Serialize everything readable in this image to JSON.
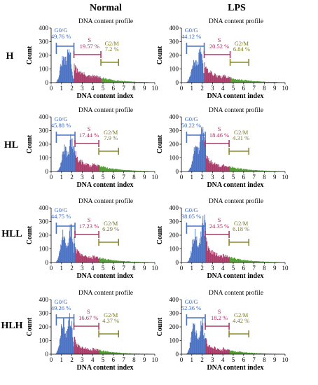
{
  "columns": [
    "Normal",
    "LPS"
  ],
  "rows": [
    "H",
    "HL",
    "HLL",
    "HLH"
  ],
  "colors": {
    "g0g": "#4a72c4",
    "s": "#a93b69",
    "g2m": "#4f9a2e",
    "g0g_label": "#3a65b8",
    "s_label": "#a0305e",
    "g2m_label": "#7a7a1e",
    "g2m_bracket": "#8a8a2a"
  },
  "chart_data": [
    {
      "type": "area",
      "title": "DNA content profile",
      "xlabel": "DNA content index",
      "ylabel": "Count",
      "row": "H",
      "column": "Normal",
      "xlim": [
        0,
        10
      ],
      "ylim": [
        0,
        400
      ],
      "xticks": [
        "0",
        "1",
        "2",
        "3",
        "4",
        "5",
        "6",
        "7",
        "8",
        "9",
        "10"
      ],
      "yticks": [
        "0",
        "100",
        "200",
        "300",
        "400"
      ],
      "phases": [
        {
          "name": "G0/G",
          "percent": "49.76 %",
          "range": [
            0.5,
            2.2
          ]
        },
        {
          "name": "S",
          "percent": "19.57 %",
          "range": [
            2.2,
            4.8
          ]
        },
        {
          "name": "G2/M",
          "percent": "7.2 %",
          "range": [
            4.8,
            6.5
          ]
        }
      ],
      "profile": {
        "peaks": [
          [
            1.15,
            165
          ],
          [
            1.75,
            225
          ]
        ],
        "s_level": 75,
        "g2_level": 18
      }
    },
    {
      "type": "area",
      "title": "DNA content profile",
      "xlabel": "DNA content index",
      "ylabel": "Count",
      "row": "H",
      "column": "LPS",
      "xlim": [
        0,
        10
      ],
      "ylim": [
        0,
        400
      ],
      "xticks": [
        "0",
        "1",
        "2",
        "3",
        "4",
        "5",
        "6",
        "7",
        "8",
        "9",
        "10"
      ],
      "yticks": [
        "0",
        "100",
        "200",
        "300",
        "400"
      ],
      "phases": [
        {
          "name": "G0/G",
          "percent": "44.12 %",
          "range": [
            0.5,
            2.2
          ]
        },
        {
          "name": "S",
          "percent": "20.52 %",
          "range": [
            2.2,
            4.7
          ]
        },
        {
          "name": "G2/M",
          "percent": "6.84 %",
          "range": [
            4.7,
            6.5
          ]
        }
      ],
      "profile": {
        "peaks": [
          [
            1.2,
            155
          ],
          [
            1.85,
            235
          ]
        ],
        "s_level": 70,
        "g2_level": 18
      }
    },
    {
      "type": "area",
      "title": "DNA content profile",
      "xlabel": "DNA content index",
      "ylabel": "Count",
      "row": "HL",
      "column": "Normal",
      "xlim": [
        0,
        10
      ],
      "ylim": [
        0,
        400
      ],
      "xticks": [
        "0",
        "1",
        "2",
        "3",
        "4",
        "5",
        "6",
        "7",
        "8",
        "9",
        "10"
      ],
      "yticks": [
        "0",
        "100",
        "200",
        "300",
        "400"
      ],
      "phases": [
        {
          "name": "G0/G",
          "percent": "45.88 %",
          "range": [
            0.5,
            2.3
          ]
        },
        {
          "name": "S",
          "percent": "17.44 %",
          "range": [
            2.3,
            4.6
          ]
        },
        {
          "name": "G2/M",
          "percent": "7.9 %",
          "range": [
            4.6,
            6.5
          ]
        }
      ],
      "profile": {
        "peaks": [
          [
            1.3,
            165
          ],
          [
            1.95,
            225
          ]
        ],
        "s_level": 70,
        "g2_level": 20
      }
    },
    {
      "type": "area",
      "title": "DNA content profile",
      "xlabel": "DNA content index",
      "ylabel": "Count",
      "row": "HL",
      "column": "LPS",
      "xlim": [
        0,
        10
      ],
      "ylim": [
        0,
        400
      ],
      "xticks": [
        "0",
        "1",
        "2",
        "3",
        "4",
        "5",
        "6",
        "7",
        "8",
        "9",
        "10"
      ],
      "yticks": [
        "0",
        "100",
        "200",
        "300",
        "400"
      ],
      "phases": [
        {
          "name": "G0/G",
          "percent": "50.22 %",
          "range": [
            0.5,
            2.3
          ]
        },
        {
          "name": "S",
          "percent": "18.46 %",
          "range": [
            2.3,
            4.6
          ]
        },
        {
          "name": "G2/M",
          "percent": "4.31 %",
          "range": [
            4.6,
            6.5
          ]
        }
      ],
      "profile": {
        "peaks": [
          [
            1.35,
            175
          ],
          [
            2.0,
            300
          ]
        ],
        "s_level": 70,
        "g2_level": 16
      }
    },
    {
      "type": "area",
      "title": "DNA content profile",
      "xlabel": "DNA content index",
      "ylabel": "Count",
      "row": "HLL",
      "column": "Normal",
      "xlim": [
        0,
        10
      ],
      "ylim": [
        0,
        400
      ],
      "xticks": [
        "0",
        "1",
        "2",
        "3",
        "4",
        "5",
        "6",
        "7",
        "8",
        "9",
        "10"
      ],
      "yticks": [
        "0",
        "100",
        "200",
        "300",
        "400"
      ],
      "phases": [
        {
          "name": "G0/G",
          "percent": "44.75 %",
          "range": [
            0.5,
            2.3
          ]
        },
        {
          "name": "S",
          "percent": "17.23 %",
          "range": [
            2.3,
            4.6
          ]
        },
        {
          "name": "G2/M",
          "percent": "6.29 %",
          "range": [
            4.6,
            6.5
          ]
        }
      ],
      "profile": {
        "peaks": [
          [
            1.15,
            195
          ],
          [
            1.9,
            240
          ]
        ],
        "s_level": 62,
        "g2_level": 16
      }
    },
    {
      "type": "area",
      "title": "DNA content profile",
      "xlabel": "DNA content index",
      "ylabel": "Count",
      "row": "HLL",
      "column": "LPS",
      "xlim": [
        0,
        10
      ],
      "ylim": [
        0,
        400
      ],
      "xticks": [
        "0",
        "1",
        "2",
        "3",
        "4",
        "5",
        "6",
        "7",
        "8",
        "9",
        "10"
      ],
      "yticks": [
        "0",
        "100",
        "200",
        "300",
        "400"
      ],
      "phases": [
        {
          "name": "G0/G",
          "percent": "38.05 %",
          "range": [
            0.5,
            2.3
          ]
        },
        {
          "name": "S",
          "percent": "24.35 %",
          "range": [
            2.3,
            4.6
          ]
        },
        {
          "name": "G2/M",
          "percent": "6.18 %",
          "range": [
            4.6,
            6.5
          ]
        }
      ],
      "profile": {
        "peaks": [
          [
            1.3,
            205
          ],
          [
            2.05,
            290
          ]
        ],
        "s_level": 85,
        "g2_level": 16
      }
    },
    {
      "type": "area",
      "title": "DNA content profile",
      "xlabel": "DNA content index",
      "ylabel": "Count",
      "row": "HLH",
      "column": "Normal",
      "xlim": [
        0,
        10
      ],
      "ylim": [
        0,
        400
      ],
      "xticks": [
        "0",
        "1",
        "2",
        "3",
        "4",
        "5",
        "6",
        "7",
        "8",
        "9",
        "10"
      ],
      "yticks": [
        "0",
        "100",
        "200",
        "300",
        "400"
      ],
      "phases": [
        {
          "name": "G0/G",
          "percent": "49.26 %",
          "range": [
            0.5,
            2.2
          ]
        },
        {
          "name": "S",
          "percent": "16.67 %",
          "range": [
            2.2,
            4.6
          ]
        },
        {
          "name": "G2/M",
          "percent": "4.37 %",
          "range": [
            4.6,
            6.5
          ]
        }
      ],
      "profile": {
        "peaks": [
          [
            1.15,
            225
          ],
          [
            1.85,
            250
          ]
        ],
        "s_level": 55,
        "g2_level": 14
      }
    },
    {
      "type": "area",
      "title": "DNA content profile",
      "xlabel": "DNA content index",
      "ylabel": "Count",
      "row": "HLH",
      "column": "LPS",
      "xlim": [
        0,
        10
      ],
      "ylim": [
        0,
        400
      ],
      "xticks": [
        "0",
        "1",
        "2",
        "3",
        "4",
        "5",
        "6",
        "7",
        "8",
        "9",
        "10"
      ],
      "yticks": [
        "0",
        "100",
        "200",
        "300",
        "400"
      ],
      "phases": [
        {
          "name": "G0/G",
          "percent": "52.36 %",
          "range": [
            0.5,
            2.3
          ]
        },
        {
          "name": "S",
          "percent": "18.2 %",
          "range": [
            2.3,
            4.6
          ]
        },
        {
          "name": "G2/M",
          "percent": "4.42 %",
          "range": [
            4.6,
            6.5
          ]
        }
      ],
      "profile": {
        "peaks": [
          [
            1.2,
            200
          ],
          [
            1.95,
            230
          ]
        ],
        "s_level": 58,
        "g2_level": 14
      }
    }
  ]
}
